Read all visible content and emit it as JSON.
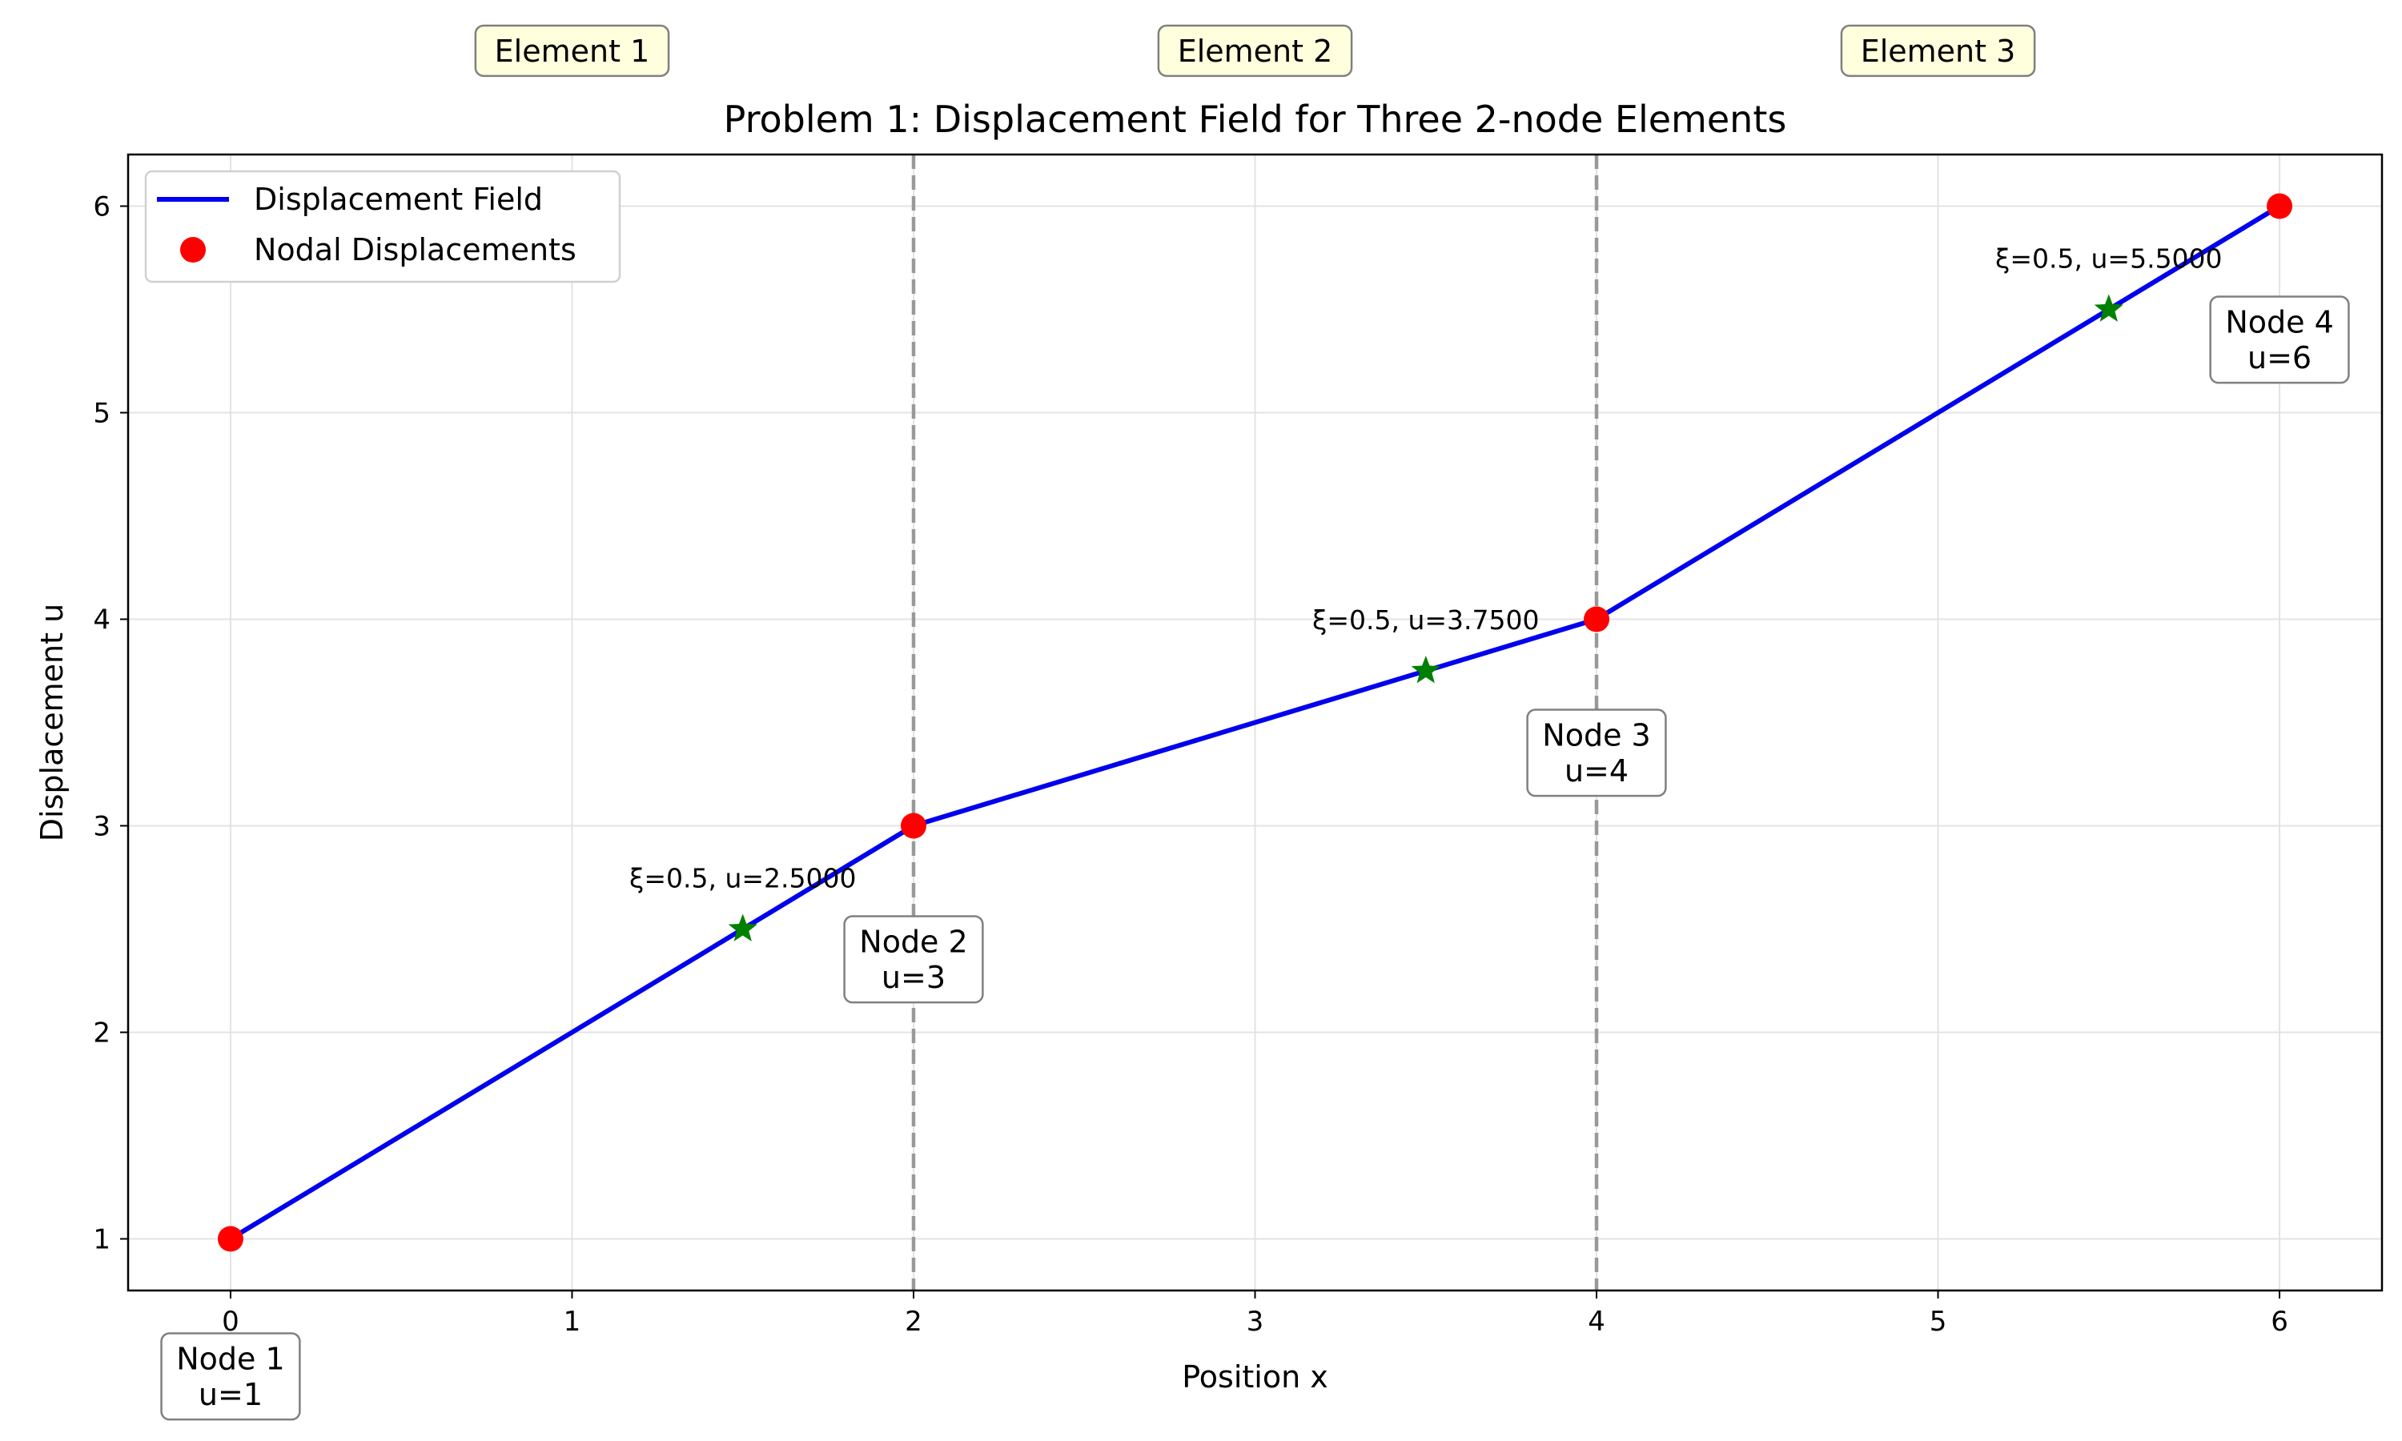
{
  "chart_data": {
    "type": "line",
    "title": "Problem 1: Displacement Field for Three 2-node Elements",
    "xlabel": "Position x",
    "ylabel": "Displacement u",
    "xlim": [
      -0.3,
      6.3
    ],
    "ylim": [
      0.75,
      6.25
    ],
    "xticks": [
      0,
      1,
      2,
      3,
      4,
      5,
      6
    ],
    "yticks": [
      1,
      2,
      3,
      4,
      5,
      6
    ],
    "grid": true,
    "legend_position": "top-left",
    "series": [
      {
        "name": "Displacement Field",
        "kind": "line",
        "color": "#0000ee",
        "x": [
          0,
          2,
          4,
          6
        ],
        "y": [
          1,
          3,
          4,
          6
        ]
      },
      {
        "name": "Nodal Displacements",
        "kind": "scatter",
        "color": "#ff0000",
        "x": [
          0,
          2,
          4,
          6
        ],
        "y": [
          1,
          3,
          4,
          6
        ]
      }
    ],
    "midpoints": {
      "color": "#008000",
      "points": [
        {
          "x": 1.5,
          "y": 2.5,
          "label": "ξ=0.5, u=2.5000"
        },
        {
          "x": 3.5,
          "y": 3.75,
          "label": "ξ=0.5, u=3.7500"
        },
        {
          "x": 5.5,
          "y": 5.5,
          "label": "ξ=0.5, u=5.5000"
        }
      ]
    },
    "element_boundaries": [
      2,
      4
    ],
    "element_labels": [
      {
        "x": 1,
        "label": "Element 1"
      },
      {
        "x": 3,
        "label": "Element 2"
      },
      {
        "x": 5,
        "label": "Element 3"
      }
    ],
    "node_labels": [
      {
        "x": 0,
        "y": 1,
        "lines": [
          "Node 1",
          "u=1"
        ]
      },
      {
        "x": 2,
        "y": 3,
        "lines": [
          "Node 2",
          "u=3"
        ]
      },
      {
        "x": 4,
        "y": 4,
        "lines": [
          "Node 3",
          "u=4"
        ]
      },
      {
        "x": 6,
        "y": 6,
        "lines": [
          "Node 4",
          "u=6"
        ]
      }
    ]
  }
}
